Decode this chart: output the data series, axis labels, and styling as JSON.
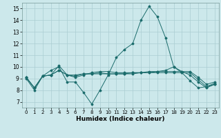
{
  "title": "",
  "xlabel": "Humidex (Indice chaleur)",
  "ylabel": "",
  "background_color": "#cce8eb",
  "grid_color": "#aacdd2",
  "line_color": "#1a6b6b",
  "xlim": [
    -0.5,
    23.5
  ],
  "ylim": [
    6.5,
    15.5
  ],
  "xticks": [
    0,
    1,
    2,
    3,
    4,
    5,
    6,
    7,
    8,
    9,
    10,
    11,
    12,
    13,
    14,
    15,
    16,
    17,
    18,
    19,
    20,
    21,
    22,
    23
  ],
  "yticks": [
    7,
    8,
    9,
    10,
    11,
    12,
    13,
    14,
    15
  ],
  "line1": {
    "x": [
      0,
      1,
      2,
      3,
      4,
      5,
      6,
      7,
      8,
      9,
      10,
      11,
      12,
      13,
      14,
      15,
      16,
      17,
      18,
      19,
      20,
      21,
      22,
      23
    ],
    "y": [
      9,
      8,
      9.2,
      9.7,
      10,
      8.7,
      8.7,
      7.8,
      6.8,
      8,
      9.3,
      10.8,
      11.5,
      12,
      14,
      15.2,
      14.3,
      12.5,
      10,
      9.5,
      8.8,
      8.2,
      8.3,
      8.5
    ]
  },
  "line2": {
    "x": [
      0,
      1,
      2,
      3,
      4,
      5,
      6,
      7,
      8,
      9,
      10,
      11,
      12,
      13,
      14,
      15,
      16,
      17,
      18,
      19,
      20,
      21,
      22,
      23
    ],
    "y": [
      9.1,
      8.2,
      9.2,
      9.3,
      9.7,
      9.3,
      9.3,
      9.4,
      9.4,
      9.4,
      9.4,
      9.4,
      9.4,
      9.5,
      9.5,
      9.5,
      9.6,
      9.6,
      9.6,
      9.6,
      9.6,
      9.1,
      8.5,
      8.7
    ]
  },
  "line3": {
    "x": [
      0,
      1,
      2,
      3,
      4,
      5,
      6,
      7,
      8,
      9,
      10,
      11,
      12,
      13,
      14,
      15,
      16,
      17,
      18,
      19,
      20,
      21,
      22,
      23
    ],
    "y": [
      9.1,
      8.2,
      9.2,
      9.3,
      10.1,
      9.3,
      9.1,
      9.3,
      9.5,
      9.6,
      9.6,
      9.5,
      9.5,
      9.5,
      9.5,
      9.6,
      9.6,
      9.7,
      10,
      9.6,
      9.3,
      8.7,
      8.2,
      8.5
    ]
  },
  "line4": {
    "x": [
      0,
      1,
      2,
      3,
      4,
      5,
      6,
      7,
      8,
      9,
      10,
      11,
      12,
      13,
      14,
      15,
      16,
      17,
      18,
      19,
      20,
      21,
      22,
      23
    ],
    "y": [
      9.1,
      8.2,
      9.2,
      9.3,
      9.7,
      9.3,
      9.2,
      9.4,
      9.4,
      9.5,
      9.4,
      9.4,
      9.4,
      9.4,
      9.5,
      9.5,
      9.5,
      9.5,
      9.5,
      9.5,
      9.5,
      8.9,
      8.3,
      8.6
    ]
  },
  "figsize": [
    3.2,
    2.0
  ],
  "dpi": 100
}
